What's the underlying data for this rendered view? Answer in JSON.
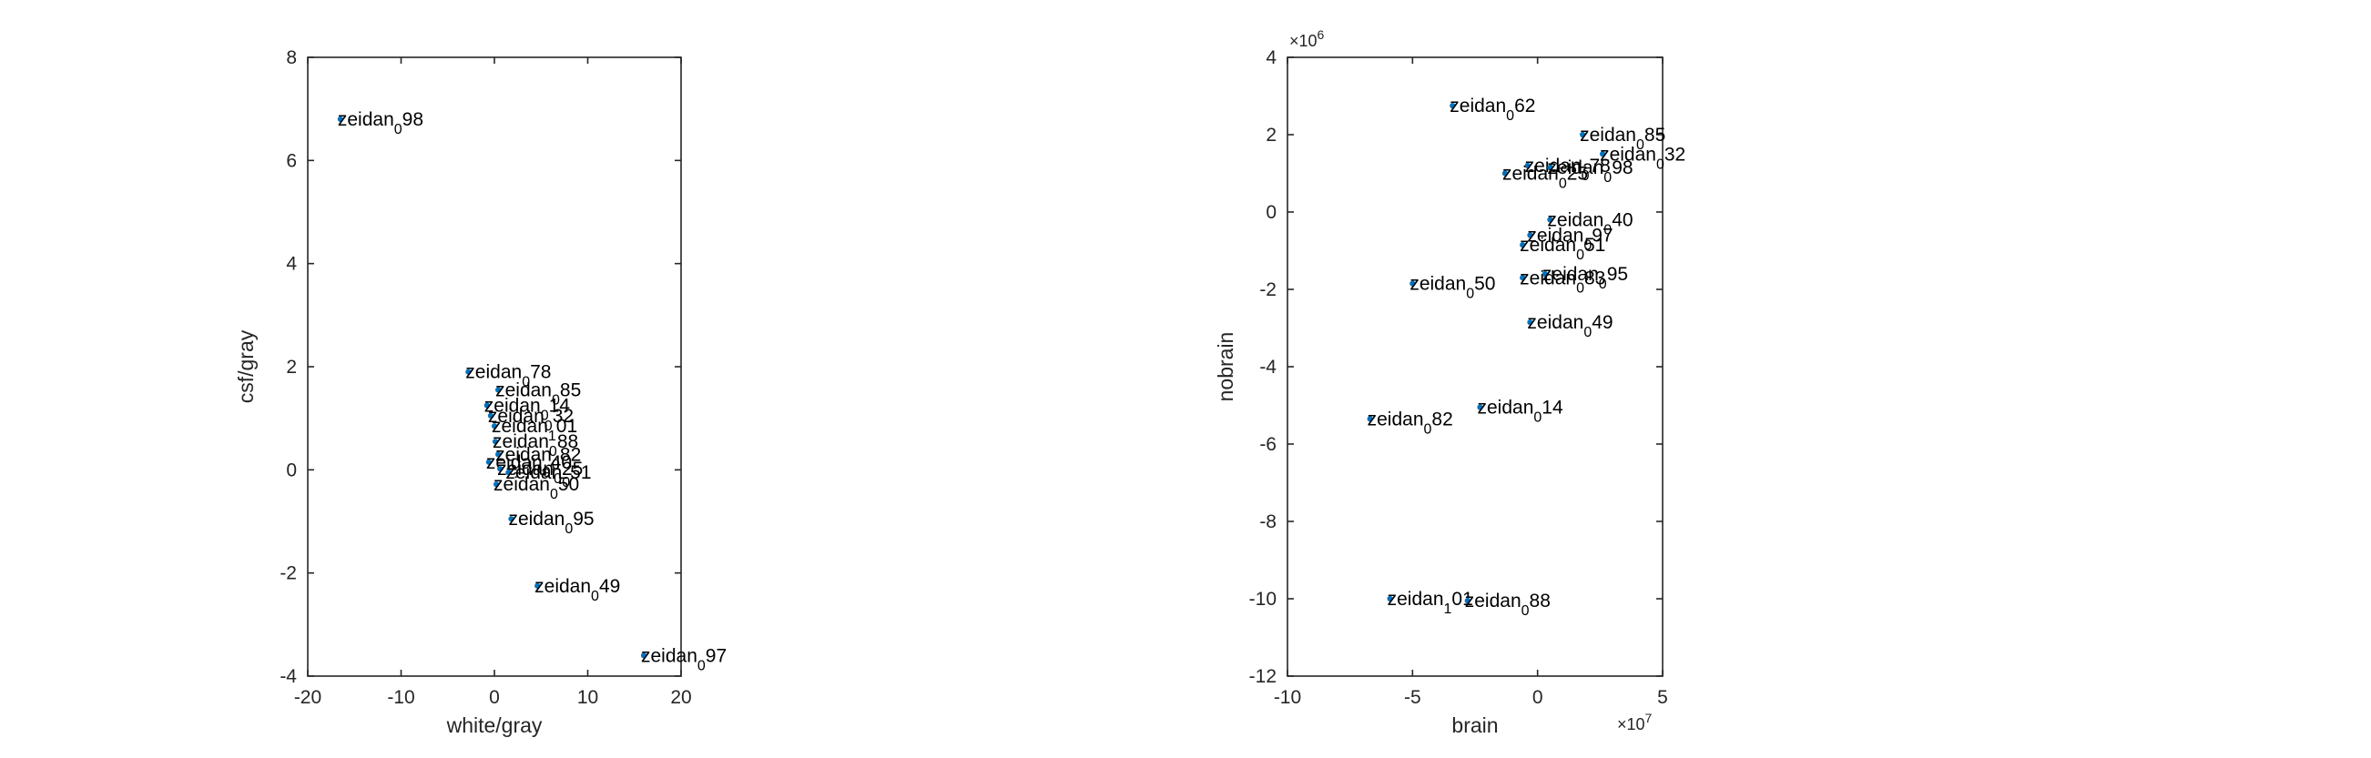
{
  "chart_data": [
    {
      "type": "scatter",
      "xlabel": "white/gray",
      "ylabel": "csf/gray",
      "xlim": [
        -20,
        20
      ],
      "ylim": [
        -4,
        8
      ],
      "xticks": [
        "-20",
        "-10",
        "0",
        "10",
        "20"
      ],
      "yticks": [
        "-4",
        "-2",
        "0",
        "2",
        "4",
        "6",
        "8"
      ],
      "points": [
        {
          "x": -16.5,
          "y": 6.8,
          "label": "zeidan",
          "sub": "0",
          "suffix": "98"
        },
        {
          "x": -2.8,
          "y": 1.9,
          "label": "zeidan",
          "sub": "0",
          "suffix": "78"
        },
        {
          "x": 0.4,
          "y": 1.55,
          "label": "zeidan",
          "sub": "0",
          "suffix": "85"
        },
        {
          "x": -0.8,
          "y": 1.25,
          "label": "zeidan",
          "sub": "0",
          "suffix": "14"
        },
        {
          "x": -0.4,
          "y": 1.05,
          "label": "zeidan",
          "sub": "0",
          "suffix": "32"
        },
        {
          "x": 0.0,
          "y": 0.85,
          "label": "zeidan",
          "sub": "1",
          "suffix": "01"
        },
        {
          "x": 0.1,
          "y": 0.55,
          "label": "zeidan",
          "sub": "0",
          "suffix": "88"
        },
        {
          "x": 0.4,
          "y": 0.3,
          "label": "zeidan",
          "sub": "0",
          "suffix": "82"
        },
        {
          "x": -0.6,
          "y": 0.15,
          "label": "zeidan",
          "sub": "0",
          "suffix": "40"
        },
        {
          "x": 0.6,
          "y": 0.02,
          "label": "zeidan",
          "sub": "0",
          "suffix": "25"
        },
        {
          "x": 1.5,
          "y": -0.05,
          "label": "zeidan",
          "sub": "0",
          "suffix": "51"
        },
        {
          "x": 0.2,
          "y": -0.28,
          "label": "zeidan",
          "sub": "0",
          "suffix": "50"
        },
        {
          "x": 1.8,
          "y": -0.95,
          "label": "zeidan",
          "sub": "0",
          "suffix": "95"
        },
        {
          "x": 4.6,
          "y": -2.25,
          "label": "zeidan",
          "sub": "0",
          "suffix": "49"
        },
        {
          "x": 16.0,
          "y": -3.6,
          "label": "zeidan",
          "sub": "0",
          "suffix": "97"
        }
      ]
    },
    {
      "type": "scatter",
      "xlabel": "brain",
      "ylabel": "nobrain",
      "xlim": [
        -10,
        5
      ],
      "ylim": [
        -12,
        4
      ],
      "xticks": [
        "-10",
        "-5",
        "0",
        "5"
      ],
      "yticks": [
        "-12",
        "-10",
        "-8",
        "-6",
        "-4",
        "-2",
        "0",
        "2",
        "4"
      ],
      "x_exponent": {
        "base": "×10",
        "power": "7"
      },
      "y_exponent": {
        "base": "×10",
        "power": "6"
      },
      "points": [
        {
          "x": -3.4,
          "y": 2.75,
          "label": "zeidan",
          "sub": "0",
          "suffix": "62"
        },
        {
          "x": 1.8,
          "y": 2.0,
          "label": "zeidan",
          "sub": "0",
          "suffix": "85"
        },
        {
          "x": 2.6,
          "y": 1.5,
          "label": "zeidan",
          "sub": "0",
          "suffix": "32"
        },
        {
          "x": -0.4,
          "y": 1.2,
          "label": "zeidan",
          "sub": "0",
          "suffix": "78"
        },
        {
          "x": 0.5,
          "y": 1.15,
          "label": "zeidan",
          "sub": "0",
          "suffix": "98"
        },
        {
          "x": -1.3,
          "y": 1.0,
          "label": "zeidan",
          "sub": "0",
          "suffix": "25"
        },
        {
          "x": 0.5,
          "y": -0.2,
          "label": "zeidan",
          "sub": "0",
          "suffix": "40"
        },
        {
          "x": -0.3,
          "y": -0.6,
          "label": "zeidan",
          "sub": "0",
          "suffix": "97"
        },
        {
          "x": -0.6,
          "y": -0.85,
          "label": "zeidan",
          "sub": "0",
          "suffix": "51"
        },
        {
          "x": -0.6,
          "y": -1.7,
          "label": "zeidan",
          "sub": "0",
          "suffix": "83"
        },
        {
          "x": 0.3,
          "y": -1.6,
          "label": "zeidan",
          "sub": "0",
          "suffix": "95"
        },
        {
          "x": -5.0,
          "y": -1.85,
          "label": "zeidan",
          "sub": "0",
          "suffix": "50"
        },
        {
          "x": -0.3,
          "y": -2.85,
          "label": "zeidan",
          "sub": "0",
          "suffix": "49"
        },
        {
          "x": -2.3,
          "y": -5.05,
          "label": "zeidan",
          "sub": "0",
          "suffix": "14"
        },
        {
          "x": -6.7,
          "y": -5.35,
          "label": "zeidan",
          "sub": "0",
          "suffix": "82"
        },
        {
          "x": -5.9,
          "y": -10.0,
          "label": "zeidan",
          "sub": "1",
          "suffix": "01"
        },
        {
          "x": -2.8,
          "y": -10.05,
          "label": "zeidan",
          "sub": "0",
          "suffix": "88"
        }
      ]
    }
  ]
}
